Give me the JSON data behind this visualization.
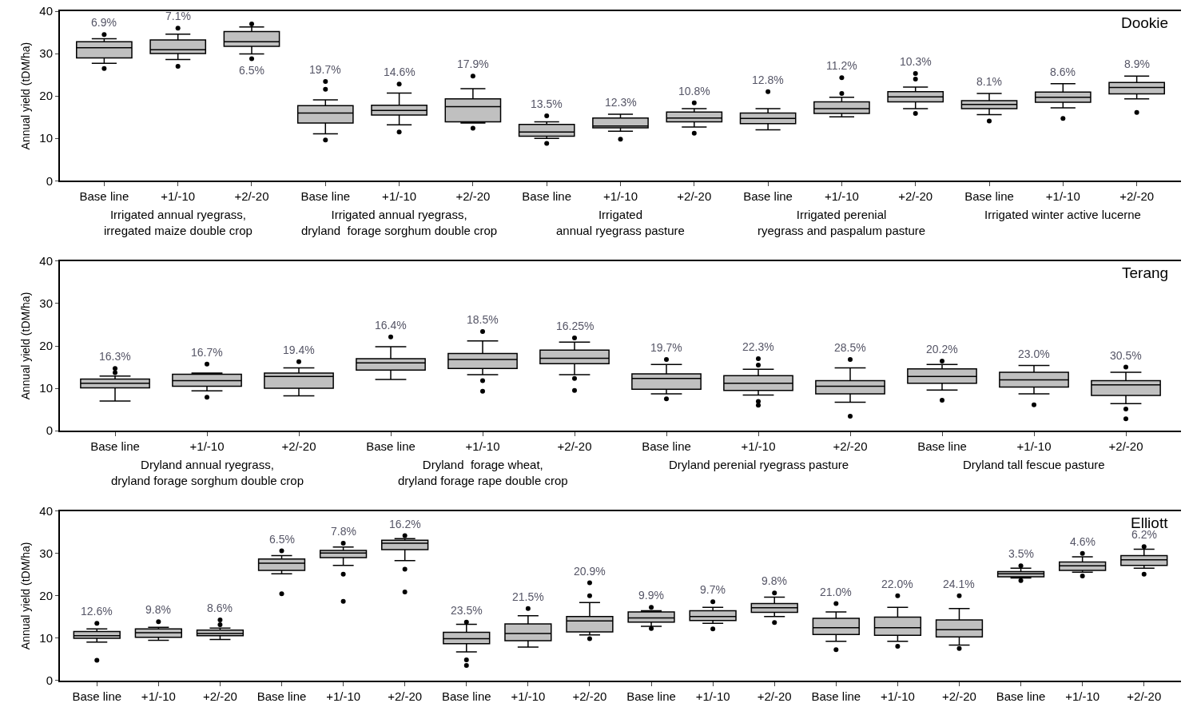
{
  "chart_data": [
    {
      "type": "box",
      "title": "Dookie",
      "ylabel": "Annual yield (tDM/ha)",
      "ylim": [
        0,
        40
      ],
      "yticks": [
        0,
        10,
        20,
        30,
        40
      ],
      "color": "#c0c0c0",
      "categories": [
        "Base line",
        "+1/-10",
        "+2/-20",
        "Base line",
        "+1/-10",
        "+2/-20",
        "Base line",
        "+1/-10",
        "+2/-20",
        "Base line",
        "+1/-10",
        "+2/-20",
        "Base line",
        "+1/-10",
        "+2/-20"
      ],
      "boxes": [
        {
          "low": 27.7,
          "q1": 29.0,
          "median": 31.4,
          "q3": 32.8,
          "high": 33.5,
          "outliers": [
            26.5,
            34.5
          ]
        },
        {
          "low": 28.6,
          "q1": 30.0,
          "median": 30.9,
          "q3": 33.2,
          "high": 34.6,
          "outliers": [
            27.0,
            36.0
          ]
        },
        {
          "low": 29.9,
          "q1": 31.7,
          "median": 32.8,
          "q3": 35.2,
          "high": 36.3,
          "outliers": [
            28.8,
            37.0
          ]
        },
        {
          "low": 11.1,
          "q1": 13.6,
          "median": 16.0,
          "q3": 17.7,
          "high": 19.1,
          "outliers": [
            9.6,
            21.6,
            23.4
          ]
        },
        {
          "low": 13.2,
          "q1": 15.5,
          "median": 16.6,
          "q3": 17.8,
          "high": 20.7,
          "outliers": [
            11.5,
            22.8
          ]
        },
        {
          "low": 13.6,
          "q1": 13.9,
          "median": 17.5,
          "q3": 19.3,
          "high": 21.7,
          "outliers": [
            12.4,
            24.7
          ]
        },
        {
          "low": 10.0,
          "q1": 10.5,
          "median": 11.5,
          "q3": 13.3,
          "high": 13.9,
          "outliers": [
            8.8,
            15.3
          ]
        },
        {
          "low": 11.7,
          "q1": 12.5,
          "median": 12.9,
          "q3": 14.8,
          "high": 15.7,
          "outliers": [
            9.8
          ]
        },
        {
          "low": 12.7,
          "q1": 13.9,
          "median": 14.8,
          "q3": 16.2,
          "high": 17.0,
          "outliers": [
            11.2,
            18.4
          ]
        },
        {
          "low": 12.0,
          "q1": 13.5,
          "median": 14.7,
          "q3": 16.0,
          "high": 17.0,
          "outliers": [
            21.0
          ]
        },
        {
          "low": 15.1,
          "q1": 15.9,
          "median": 17.0,
          "q3": 18.6,
          "high": 19.7,
          "outliers": [
            20.6,
            24.3
          ]
        },
        {
          "low": 17.0,
          "q1": 18.6,
          "median": 19.8,
          "q3": 21.0,
          "high": 22.1,
          "outliers": [
            15.9,
            24.0,
            25.3
          ]
        },
        {
          "low": 15.6,
          "q1": 17.0,
          "median": 18.0,
          "q3": 18.9,
          "high": 20.6,
          "outliers": [
            14.1
          ]
        },
        {
          "low": 17.2,
          "q1": 18.5,
          "median": 19.7,
          "q3": 20.9,
          "high": 22.9,
          "outliers": [
            14.7
          ]
        },
        {
          "low": 19.3,
          "q1": 20.5,
          "median": 22.0,
          "q3": 23.2,
          "high": 24.7,
          "outliers": [
            16.1
          ]
        }
      ],
      "value_labels": [
        "6.9%",
        "7.1%",
        "6.5%",
        "19.7%",
        "14.6%",
        "17.9%",
        "13.5%",
        "12.3%",
        "10.8%",
        "12.8%",
        "11.2%",
        "10.3%",
        "8.1%",
        "8.6%",
        "8.9%"
      ],
      "annotations": [
        "Irrigated annual ryegrass,\nirregated maize double crop",
        "Irrigated annual ryegrass,\ndryland  forage sorghum double crop",
        "Irrigated\nannual ryegrass pasture",
        "Irrigated perenial\nryegrass and paspalum pasture",
        "Irrigated winter active lucerne"
      ]
    },
    {
      "type": "box",
      "title": "Terang",
      "ylabel": "Annual yield (tDM/ha)",
      "ylim": [
        0,
        40
      ],
      "yticks": [
        0,
        10,
        20,
        30,
        40
      ],
      "color": "#c0c0c0",
      "categories": [
        "Base line",
        "+1/-10",
        "+2/-20",
        "Base line",
        "+1/-10",
        "+2/-20",
        "Base line",
        "+1/-10",
        "+2/-20",
        "Base line",
        "+1/-10",
        "+2/-20"
      ],
      "boxes": [
        {
          "low": 7.0,
          "q1": 10.1,
          "median": 11.2,
          "q3": 12.2,
          "high": 12.9,
          "outliers": [
            13.7,
            14.7
          ]
        },
        {
          "low": 9.4,
          "q1": 10.5,
          "median": 11.8,
          "q3": 13.3,
          "high": 13.6,
          "outliers": [
            7.9,
            15.7
          ]
        },
        {
          "low": 8.2,
          "q1": 10.0,
          "median": 12.8,
          "q3": 13.6,
          "high": 14.8,
          "outliers": [
            16.3
          ]
        },
        {
          "low": 12.1,
          "q1": 14.3,
          "median": 16.0,
          "q3": 17.0,
          "high": 19.8,
          "outliers": [
            22.1
          ]
        },
        {
          "low": 13.2,
          "q1": 14.7,
          "median": 16.8,
          "q3": 18.2,
          "high": 21.2,
          "outliers": [
            9.3,
            11.8,
            23.4
          ]
        },
        {
          "low": 13.2,
          "q1": 15.8,
          "median": 17.1,
          "q3": 19.0,
          "high": 20.9,
          "outliers": [
            9.5,
            12.3,
            21.9
          ]
        },
        {
          "low": 8.7,
          "q1": 9.8,
          "median": 12.3,
          "q3": 13.4,
          "high": 15.6,
          "outliers": [
            7.5,
            16.8
          ]
        },
        {
          "low": 8.4,
          "q1": 9.5,
          "median": 11.2,
          "q3": 13.0,
          "high": 14.5,
          "outliers": [
            6.0,
            6.9,
            15.5,
            17.0
          ]
        },
        {
          "low": 6.7,
          "q1": 8.7,
          "median": 10.5,
          "q3": 11.8,
          "high": 14.8,
          "outliers": [
            3.4,
            16.8
          ]
        },
        {
          "low": 9.6,
          "q1": 11.2,
          "median": 12.8,
          "q3": 14.6,
          "high": 15.6,
          "outliers": [
            7.2,
            16.4
          ]
        },
        {
          "low": 8.7,
          "q1": 10.3,
          "median": 12.0,
          "q3": 13.8,
          "high": 15.4,
          "outliers": [
            6.1
          ]
        },
        {
          "low": 6.4,
          "q1": 8.3,
          "median": 10.8,
          "q3": 11.8,
          "high": 13.8,
          "outliers": [
            2.8,
            5.1,
            15.0
          ]
        }
      ],
      "value_labels": [
        "16.3%",
        "16.7%",
        "19.4%",
        "16.4%",
        "18.5%",
        "16.25%",
        "19.7%",
        "22.3%",
        "28.5%",
        "20.2%",
        "23.0%",
        "30.5%"
      ],
      "annotations": [
        "Dryland annual ryegrass,\ndryland forage sorghum double crop",
        "Dryland  forage wheat,\ndryland forage rape double crop",
        "Dryland perenial ryegrass pasture",
        "Dryland tall fescue pasture"
      ]
    },
    {
      "type": "box",
      "title": "Elliott",
      "ylabel": "Annual yield (tDM/ha)",
      "ylim": [
        0,
        40
      ],
      "yticks": [
        0,
        10,
        20,
        30,
        40
      ],
      "color": "#c0c0c0",
      "categories": [
        "Base line",
        "+1/-10",
        "+2/-20",
        "Base line",
        "+1/-10",
        "+2/-20",
        "Base line",
        "+1/-10",
        "+2/-20",
        "Base line",
        "+1/-10",
        "+2/-20",
        "Base line",
        "+1/-10",
        "+2/-20",
        "Base line",
        "+1/-10",
        "+2/-20"
      ],
      "boxes": [
        {
          "low": 9.1,
          "q1": 10.0,
          "median": 10.6,
          "q3": 11.6,
          "high": 12.2,
          "outliers": [
            4.8,
            13.5
          ]
        },
        {
          "low": 9.5,
          "q1": 10.2,
          "median": 11.3,
          "q3": 12.2,
          "high": 12.6,
          "outliers": [
            13.9
          ]
        },
        {
          "low": 9.7,
          "q1": 10.6,
          "median": 11.1,
          "q3": 11.9,
          "high": 12.4,
          "outliers": [
            13.2,
            14.3
          ]
        },
        {
          "low": 25.2,
          "q1": 26.0,
          "median": 27.7,
          "q3": 28.7,
          "high": 29.5,
          "outliers": [
            20.5,
            30.6
          ]
        },
        {
          "low": 27.2,
          "q1": 29.0,
          "median": 30.1,
          "q3": 30.7,
          "high": 31.5,
          "outliers": [
            18.7,
            25.1,
            32.4
          ]
        },
        {
          "low": 28.3,
          "q1": 30.9,
          "median": 32.4,
          "q3": 33.1,
          "high": 33.5,
          "outliers": [
            20.9,
            26.3,
            34.2
          ]
        },
        {
          "low": 6.8,
          "q1": 8.7,
          "median": 9.9,
          "q3": 11.4,
          "high": 13.3,
          "outliers": [
            3.6,
            4.9,
            13.8
          ]
        },
        {
          "low": 7.9,
          "q1": 9.4,
          "median": 11.1,
          "q3": 13.4,
          "high": 15.3,
          "outliers": [
            17.0
          ]
        },
        {
          "low": 10.8,
          "q1": 11.5,
          "median": 14.1,
          "q3": 15.1,
          "high": 18.4,
          "outliers": [
            9.9,
            20.0,
            23.1
          ]
        },
        {
          "low": 12.8,
          "q1": 13.8,
          "median": 14.8,
          "q3": 16.2,
          "high": 16.5,
          "outliers": [
            12.3,
            17.3
          ]
        },
        {
          "low": 13.5,
          "q1": 14.2,
          "median": 15.1,
          "q3": 16.5,
          "high": 17.3,
          "outliers": [
            12.2,
            18.6
          ]
        },
        {
          "low": 15.1,
          "q1": 16.1,
          "median": 17.2,
          "q3": 18.2,
          "high": 19.7,
          "outliers": [
            13.7,
            20.7
          ]
        },
        {
          "low": 9.3,
          "q1": 10.9,
          "median": 12.5,
          "q3": 14.7,
          "high": 16.2,
          "outliers": [
            7.3,
            18.2
          ]
        },
        {
          "low": 9.3,
          "q1": 10.7,
          "median": 12.5,
          "q3": 15.0,
          "high": 17.3,
          "outliers": [
            8.1,
            20.0
          ]
        },
        {
          "low": 8.4,
          "q1": 10.3,
          "median": 12.0,
          "q3": 14.3,
          "high": 17.0,
          "outliers": [
            7.6,
            20.0
          ]
        },
        {
          "low": 24.2,
          "q1": 24.5,
          "median": 25.2,
          "q3": 25.7,
          "high": 26.5,
          "outliers": [
            23.6,
            27.1
          ]
        },
        {
          "low": 25.6,
          "q1": 26.0,
          "median": 27.1,
          "q3": 28.0,
          "high": 29.2,
          "outliers": [
            24.7,
            30.0
          ]
        },
        {
          "low": 26.5,
          "q1": 27.2,
          "median": 28.5,
          "q3": 29.5,
          "high": 31.0,
          "outliers": [
            25.1,
            31.6
          ]
        }
      ],
      "value_labels": [
        "12.6%",
        "9.8%",
        "8.6%",
        "6.5%",
        "7.8%",
        "16.2%",
        "23.5%",
        "21.5%",
        "20.9%",
        "9.9%",
        "9.7%",
        "9.8%",
        "21.0%",
        "22.0%",
        "24.1%",
        "3.5%",
        "4.6%",
        "6.2%"
      ]
    }
  ]
}
